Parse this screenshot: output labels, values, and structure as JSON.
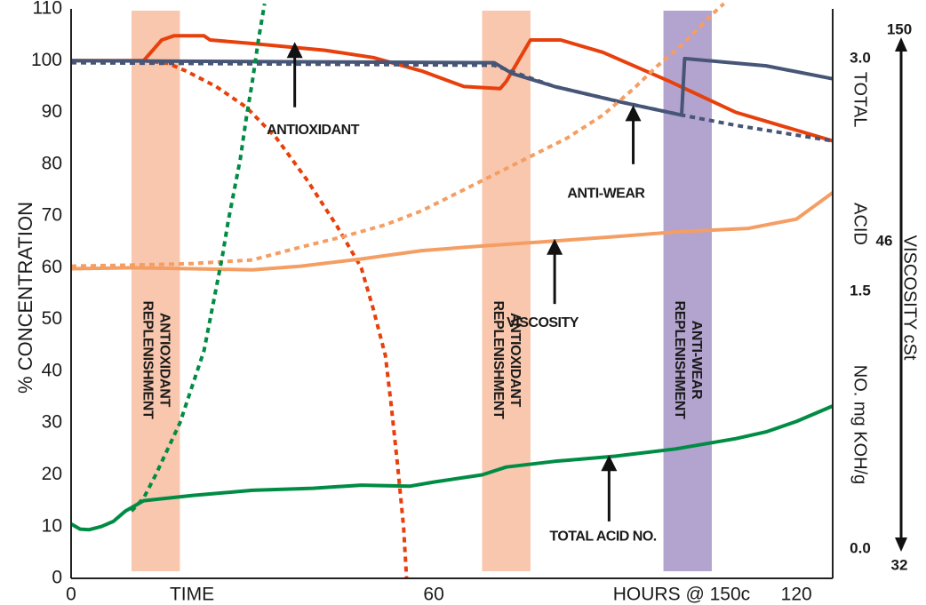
{
  "chart_data": {
    "type": "line",
    "title": "",
    "xlabel": "HOURS @ 150c",
    "ylabel": "% CONCENTRATION",
    "right_axis_1_label": [
      "TOTAL",
      "ACID",
      "NO. mg KOH/g"
    ],
    "right_axis_2_label": "VISCOSITY cSt",
    "xlim": [
      0,
      126
    ],
    "ylim": [
      0,
      110
    ],
    "x_ticks": [
      {
        "x": 0,
        "label": "0"
      },
      {
        "x": 20,
        "label": "TIME"
      },
      {
        "x": 60,
        "label": "60"
      },
      {
        "x": 101,
        "label": "HOURS @ 150c"
      },
      {
        "x": 120,
        "label": "120"
      }
    ],
    "y_ticks": [
      "0",
      "10",
      "20",
      "30",
      "40",
      "50",
      "60",
      "70",
      "80",
      "90",
      "100",
      "110"
    ],
    "tan_ticks": [
      {
        "value": 3.0,
        "label": "3.0"
      },
      {
        "value": 1.5,
        "label": "1.5"
      },
      {
        "value": 0.0,
        "label": "0.0"
      }
    ],
    "visc_ticks": [
      {
        "value": 150,
        "label": "150"
      },
      {
        "value": 46,
        "label": "46"
      },
      {
        "value": 32,
        "label": "32"
      }
    ],
    "grid": false,
    "legend": "none",
    "bands": [
      {
        "x0": 10,
        "x1": 18,
        "color": "#F9C7AE",
        "label": [
          "ANTIOXIDANT",
          "REPLENISHMENT"
        ]
      },
      {
        "x0": 68,
        "x1": 76,
        "color": "#F9C7AE",
        "label": [
          "ANTIOXIDANT",
          "REPLENISHMENT"
        ]
      },
      {
        "x0": 98,
        "x1": 106,
        "color": "#B3A3CF",
        "label": [
          "ANTI-WEAR",
          "REPLENISHMENT"
        ]
      }
    ],
    "series": [
      {
        "key": "antioxidant",
        "color": "#E8400C",
        "style": "solid",
        "width": 4,
        "points": [
          [
            0,
            100
          ],
          [
            12,
            100
          ],
          [
            15,
            104
          ],
          [
            17,
            104.8
          ],
          [
            22,
            104.8
          ],
          [
            23,
            104
          ],
          [
            30,
            103.3
          ],
          [
            42,
            102
          ],
          [
            50,
            100.6
          ],
          [
            58,
            98
          ],
          [
            65,
            95
          ],
          [
            71,
            94.6
          ],
          [
            72,
            96
          ],
          [
            76,
            104
          ],
          [
            81,
            104
          ],
          [
            88,
            101.6
          ],
          [
            99,
            96
          ],
          [
            110,
            90
          ],
          [
            126,
            84.5
          ]
        ]
      },
      {
        "key": "antioxidant_no_replenish",
        "color": "#E8400C",
        "style": "dotted",
        "width": 4,
        "points": [
          [
            12,
            100
          ],
          [
            16,
            99.5
          ],
          [
            19,
            98
          ],
          [
            24,
            95
          ],
          [
            29,
            91
          ],
          [
            34,
            85
          ],
          [
            39,
            77
          ],
          [
            44,
            68
          ],
          [
            48,
            60
          ],
          [
            50,
            52
          ],
          [
            52,
            43
          ],
          [
            53,
            33
          ],
          [
            54,
            22
          ],
          [
            55,
            10
          ],
          [
            55.5,
            0
          ]
        ]
      },
      {
        "key": "anti_wear",
        "color": "#475576",
        "style": "solid",
        "width": 4,
        "points": [
          [
            0,
            100
          ],
          [
            70,
            99.6
          ],
          [
            73,
            97.5
          ],
          [
            80,
            95
          ],
          [
            91,
            92
          ],
          [
            101,
            89.5
          ],
          [
            101.5,
            100.4
          ],
          [
            115,
            99
          ],
          [
            126,
            96.5
          ]
        ]
      },
      {
        "key": "anti_wear_no_replenish",
        "color": "#475576",
        "style": "dotted",
        "width": 4,
        "points": [
          [
            0,
            99.6
          ],
          [
            70,
            99.1
          ],
          [
            80,
            95
          ],
          [
            91,
            92
          ],
          [
            101,
            89.5
          ],
          [
            110,
            87.5
          ],
          [
            118,
            86
          ],
          [
            126,
            84.5
          ]
        ]
      },
      {
        "key": "viscosity",
        "color": "#F59E64",
        "style": "solid",
        "width": 4,
        "points": [
          [
            0,
            59.8
          ],
          [
            10,
            60
          ],
          [
            20,
            59.8
          ],
          [
            30,
            59.6
          ],
          [
            38,
            60.3
          ],
          [
            48,
            61.7
          ],
          [
            58,
            63.3
          ],
          [
            68,
            64.2
          ],
          [
            78,
            65
          ],
          [
            90,
            66
          ],
          [
            101,
            67
          ],
          [
            112,
            67.6
          ],
          [
            120,
            69.4
          ],
          [
            126,
            74.5
          ]
        ]
      },
      {
        "key": "viscosity_no_replenish",
        "color": "#F59E64",
        "style": "dotted",
        "width": 4,
        "points": [
          [
            0,
            60.3
          ],
          [
            10,
            60.5
          ],
          [
            20,
            60.8
          ],
          [
            30,
            61.5
          ],
          [
            38,
            64
          ],
          [
            45,
            66
          ],
          [
            52,
            68.3
          ],
          [
            58,
            71
          ],
          [
            64,
            74.5
          ],
          [
            70,
            78
          ],
          [
            76,
            81.5
          ],
          [
            82,
            85
          ],
          [
            88,
            89.5
          ],
          [
            93,
            94.5
          ],
          [
            97,
            99
          ],
          [
            101,
            103
          ],
          [
            104,
            106.5
          ],
          [
            107,
            110
          ],
          [
            108,
            111
          ]
        ]
      },
      {
        "key": "total_acid_no",
        "color": "#008C44",
        "style": "solid",
        "width": 4,
        "points": [
          [
            0,
            10.5
          ],
          [
            1.5,
            9.5
          ],
          [
            3,
            9.4
          ],
          [
            5,
            10
          ],
          [
            7,
            11
          ],
          [
            9,
            13
          ],
          [
            12,
            15
          ],
          [
            20,
            16
          ],
          [
            30,
            17
          ],
          [
            40,
            17.4
          ],
          [
            48,
            18
          ],
          [
            56,
            17.8
          ],
          [
            60,
            18.6
          ],
          [
            68,
            20
          ],
          [
            72,
            21.5
          ],
          [
            80,
            22.6
          ],
          [
            90,
            23.6
          ],
          [
            100,
            25
          ],
          [
            110,
            27
          ],
          [
            115,
            28.3
          ],
          [
            120,
            30.3
          ],
          [
            126,
            33.3
          ]
        ]
      },
      {
        "key": "total_acid_no_no_replenish",
        "color": "#008C44",
        "style": "dotted",
        "width": 4,
        "points": [
          [
            10,
            13
          ],
          [
            12,
            15.5
          ],
          [
            14,
            20
          ],
          [
            16,
            25
          ],
          [
            18,
            30
          ],
          [
            20,
            37
          ],
          [
            22,
            44
          ],
          [
            23,
            50
          ],
          [
            24,
            56
          ],
          [
            25,
            62
          ],
          [
            26,
            69
          ],
          [
            27,
            75
          ],
          [
            28,
            81
          ],
          [
            29,
            89
          ],
          [
            30,
            96
          ],
          [
            31,
            104
          ],
          [
            32,
            111
          ]
        ]
      }
    ],
    "annotations": [
      {
        "text": "ANTIOXIDANT",
        "tip": [
          37,
          103.6
        ],
        "tail": [
          37,
          91
        ],
        "label": [
          40,
          86.5
        ]
      },
      {
        "text": "ANTI-WEAR",
        "tip": [
          93,
          91.4
        ],
        "tail": [
          93,
          80
        ],
        "label": [
          88.5,
          74.3
        ]
      },
      {
        "text": "VISCOSITY",
        "tip": [
          80,
          65.6
        ],
        "tail": [
          80,
          53
        ],
        "label": [
          78,
          49.3
        ]
      },
      {
        "text": "TOTAL ACID NO.",
        "tip": [
          89,
          23.8
        ],
        "tail": [
          89,
          11
        ],
        "label": [
          88,
          8
        ]
      }
    ]
  }
}
